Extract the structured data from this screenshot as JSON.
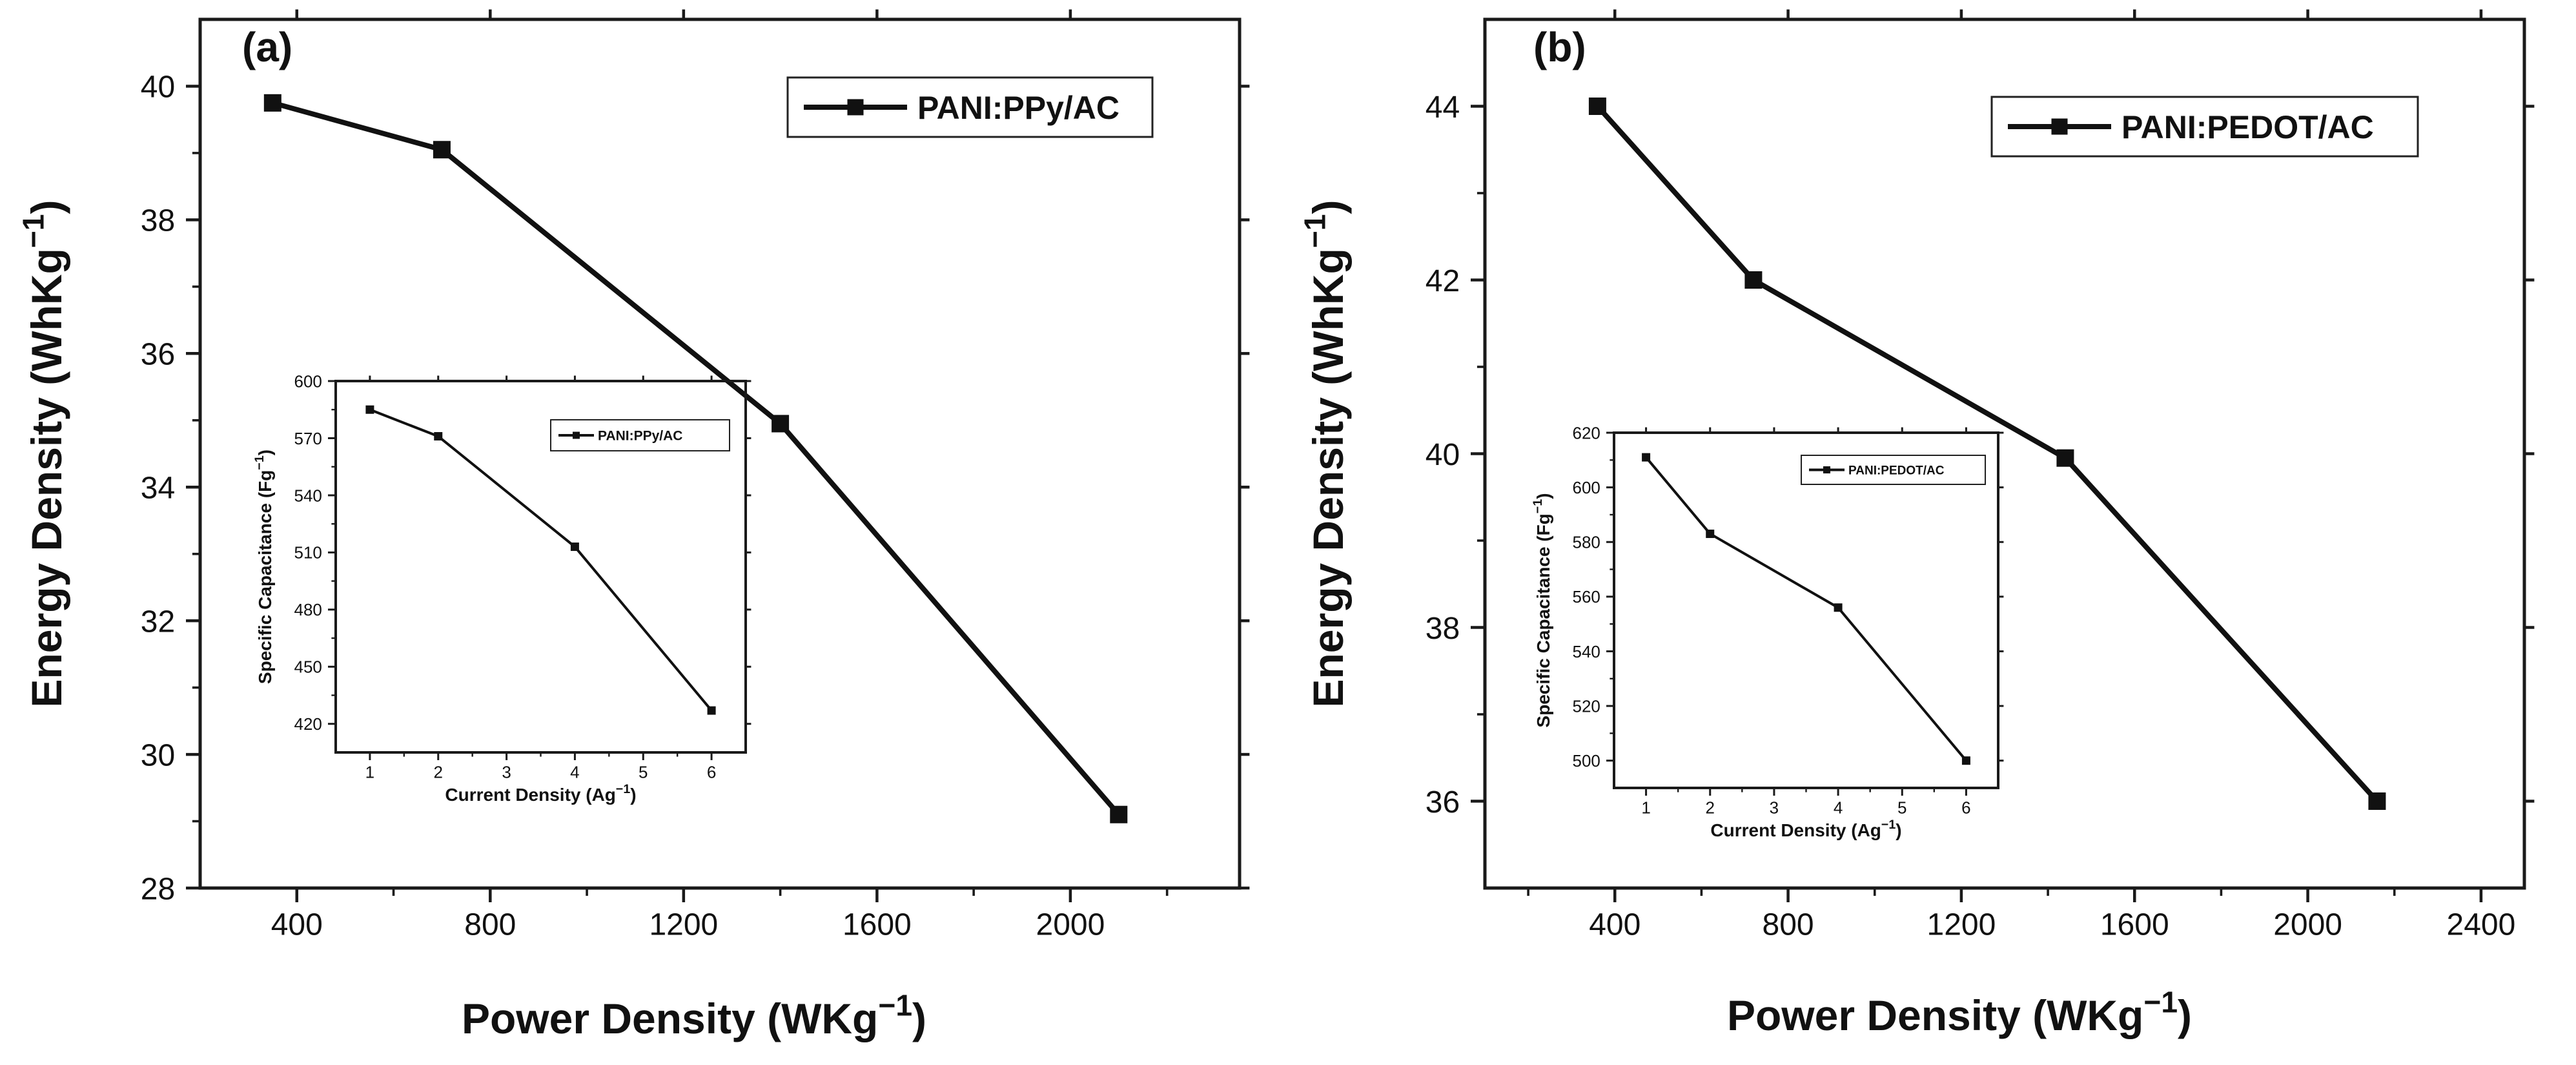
{
  "chart_data": [
    {
      "type": "line",
      "panel_label": "(a)",
      "xlabel": "Power Density (WKg",
      "xlabel_sup": "−1",
      "xlabel_tail": ")",
      "ylabel": "Energy Density (WhKg",
      "ylabel_sup": "−1",
      "ylabel_tail": ")",
      "xlim": [
        200,
        2350
      ],
      "ylim": [
        28,
        41
      ],
      "x_ticks": [
        400,
        800,
        1200,
        1600,
        2000
      ],
      "y_ticks": [
        28,
        30,
        32,
        34,
        36,
        38,
        40
      ],
      "legend_position": "top-right",
      "series": [
        {
          "name": "PANI:PPy/AC",
          "x": [
            350,
            700,
            1400,
            2100
          ],
          "y": [
            39.75,
            39.05,
            34.95,
            29.1
          ]
        }
      ],
      "inset": {
        "type": "line",
        "xlabel": "Current Density (Ag",
        "xlabel_sup": "−1",
        "xlabel_tail": ")",
        "ylabel": "Specific Capacitance (Fg",
        "ylabel_sup": "−1",
        "ylabel_tail": ")",
        "xlim": [
          0.5,
          6.5
        ],
        "ylim": [
          405,
          600
        ],
        "x_ticks": [
          1,
          2,
          3,
          4,
          5,
          6
        ],
        "y_ticks": [
          420,
          450,
          480,
          510,
          540,
          570,
          600
        ],
        "legend_position": "top-right",
        "series": [
          {
            "name": "PANI:PPy/AC",
            "x": [
              1,
              2,
              4,
              6
            ],
            "y": [
              585,
              571,
              513,
              427
            ]
          }
        ]
      }
    },
    {
      "type": "line",
      "panel_label": "(b)",
      "xlabel": "Power Density (WKg",
      "xlabel_sup": "−1",
      "xlabel_tail": ")",
      "ylabel": "Energy Density (WhKg",
      "ylabel_sup": "−1",
      "ylabel_tail": ")",
      "xlim": [
        100,
        2500
      ],
      "ylim": [
        35,
        45
      ],
      "x_ticks": [
        400,
        800,
        1200,
        1600,
        2000,
        2400
      ],
      "y_ticks": [
        36,
        38,
        40,
        42,
        44
      ],
      "legend_position": "top-right",
      "series": [
        {
          "name": "PANI:PEDOT/AC",
          "x": [
            360,
            720,
            1440,
            2160
          ],
          "y": [
            44.0,
            42.0,
            39.95,
            36.0
          ]
        }
      ],
      "inset": {
        "type": "line",
        "xlabel": "Current Density (Ag",
        "xlabel_sup": "−1",
        "xlabel_tail": ")",
        "ylabel": "Specific Capacitance (Fg",
        "ylabel_sup": "−1",
        "ylabel_tail": ")",
        "xlim": [
          0.5,
          6.5
        ],
        "ylim": [
          490,
          620
        ],
        "x_ticks": [
          1,
          2,
          3,
          4,
          5,
          6
        ],
        "y_ticks": [
          500,
          520,
          540,
          560,
          580,
          600,
          620
        ],
        "legend_position": "top-right",
        "series": [
          {
            "name": "PANI:PEDOT/AC",
            "x": [
              1,
              2,
              4,
              6
            ],
            "y": [
              611,
              583,
              556,
              500
            ]
          }
        ]
      }
    }
  ]
}
